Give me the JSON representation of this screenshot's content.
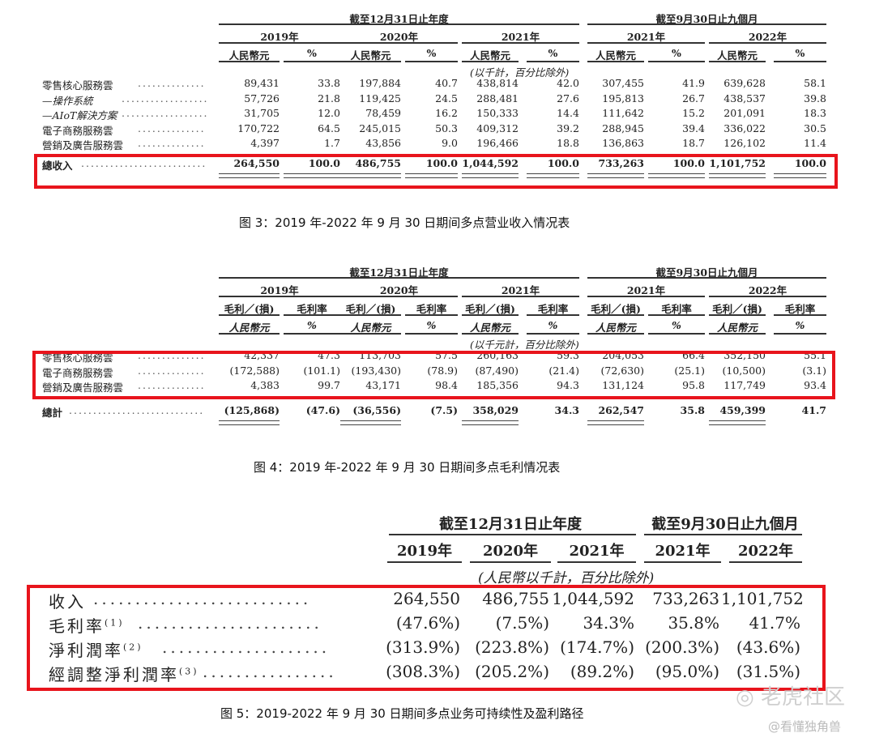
{
  "table1": {
    "group_headers": [
      "截至12月31日止年度",
      "截至9月30日止九個月"
    ],
    "years": [
      "2019年",
      "2020年",
      "2021年",
      "2021年",
      "2022年"
    ],
    "units": [
      "人民幣元",
      "%",
      "人民幣元",
      "%",
      "人民幣元",
      "%",
      "人民幣元",
      "%",
      "人民幣元",
      "%"
    ],
    "note": "(以千計，百分比除外)",
    "rows": [
      {
        "label": "零售核心服務雲",
        "values": [
          "89,431",
          "33.8",
          "197,884",
          "40.7",
          "438,814",
          "42.0",
          "307,455",
          "41.9",
          "639,628",
          "58.1"
        ]
      },
      {
        "label": "—操作系統",
        "italic": true,
        "values": [
          "57,726",
          "21.8",
          "119,425",
          "24.5",
          "288,481",
          "27.6",
          "195,813",
          "26.7",
          "438,537",
          "39.8"
        ]
      },
      {
        "label": "—AIoT解決方案",
        "italic": true,
        "values": [
          "31,705",
          "12.0",
          "78,459",
          "16.2",
          "150,333",
          "14.4",
          "111,642",
          "15.2",
          "201,091",
          "18.3"
        ]
      },
      {
        "label": "電子商務服務雲",
        "values": [
          "170,722",
          "64.5",
          "245,015",
          "50.3",
          "409,312",
          "39.2",
          "288,945",
          "39.4",
          "336,022",
          "30.5"
        ]
      },
      {
        "label": "營銷及廣告服務雲",
        "values": [
          "4,397",
          "1.7",
          "43,856",
          "9.0",
          "196,466",
          "18.8",
          "136,863",
          "18.7",
          "126,102",
          "11.4"
        ]
      }
    ],
    "total": {
      "label": "總收入",
      "values": [
        "264,550",
        "100.0",
        "486,755",
        "100.0",
        "1,044,592",
        "100.0",
        "733,263",
        "100.0",
        "1,101,752",
        "100.0"
      ]
    },
    "caption": "图 3：2019 年-2022 年 9 月 30 日期间多点营业收入情况表"
  },
  "table2": {
    "group_headers": [
      "截至12月31日止年度",
      "截至9月30日止九個月"
    ],
    "years": [
      "2019年",
      "2020年",
      "2021年",
      "2021年",
      "2022年"
    ],
    "subheaders": [
      "毛利／(損)",
      "毛利率",
      "毛利／(損)",
      "毛利率",
      "毛利／(損)",
      "毛利率",
      "毛利／(損)",
      "毛利率",
      "毛利／(損)",
      "毛利率"
    ],
    "units": [
      "人民幣元",
      "%",
      "人民幣元",
      "%",
      "人民幣元",
      "%",
      "人民幣元",
      "%",
      "人民幣元",
      "%"
    ],
    "note": "(以千元計，百分比除外)",
    "rows": [
      {
        "label": "零售核心服務雲",
        "values": [
          "42,337",
          "47.3",
          "113,703",
          "57.5",
          "260,163",
          "59.3",
          "204,053",
          "66.4",
          "352,150",
          "55.1"
        ]
      },
      {
        "label": "電子商務服務雲",
        "values": [
          "(172,588)",
          "(101.1)",
          "(193,430)",
          "(78.9)",
          "(87,490)",
          "(21.4)",
          "(72,630)",
          "(25.1)",
          "(10,500)",
          "(3.1)"
        ]
      },
      {
        "label": "營銷及廣告服務雲",
        "values": [
          "4,383",
          "99.7",
          "43,171",
          "98.4",
          "185,356",
          "94.3",
          "131,124",
          "95.8",
          "117,749",
          "93.4"
        ]
      }
    ],
    "total": {
      "label": "總計",
      "values": [
        "(125,868)",
        "(47.6)",
        "(36,556)",
        "(7.5)",
        "358,029",
        "34.3",
        "262,547",
        "35.8",
        "459,399",
        "41.7"
      ]
    },
    "caption": "图 4：2019 年-2022 年 9 月 30 日期间多点毛利情况表"
  },
  "table3": {
    "group_headers": [
      "截至12月31日止年度",
      "截至9月30日止九個月"
    ],
    "years": [
      "2019年",
      "2020年",
      "2021年",
      "2021年",
      "2022年"
    ],
    "note": "(人民幣以千計，百分比除外)",
    "rows": [
      {
        "label": "收入",
        "sup": "",
        "values": [
          "264,550",
          "486,755",
          "1,044,592",
          "733,263",
          "1,101,752"
        ]
      },
      {
        "label": "毛利率",
        "sup": "(1)",
        "values": [
          "(47.6%)",
          "(7.5%)",
          "34.3%",
          "35.8%",
          "41.7%"
        ]
      },
      {
        "label": "淨利潤率",
        "sup": "(2)",
        "values": [
          "(313.9%)",
          "(223.8%)",
          "(174.7%)",
          "(200.3%)",
          "(43.6%)"
        ]
      },
      {
        "label": "經調整淨利潤率",
        "sup": "(3)",
        "values": [
          "(308.3%)",
          "(205.2%)",
          "(89.2%)",
          "(95.0%)",
          "(31.5%)"
        ]
      }
    ],
    "caption": "图 5：2019-2022 年 9 月 30 日期间多点业务可持续性及盈利路径"
  },
  "watermark": {
    "brand": "老虎社区",
    "handle": "@看懂独角兽"
  },
  "colors": {
    "highlight": "#e8141c"
  }
}
